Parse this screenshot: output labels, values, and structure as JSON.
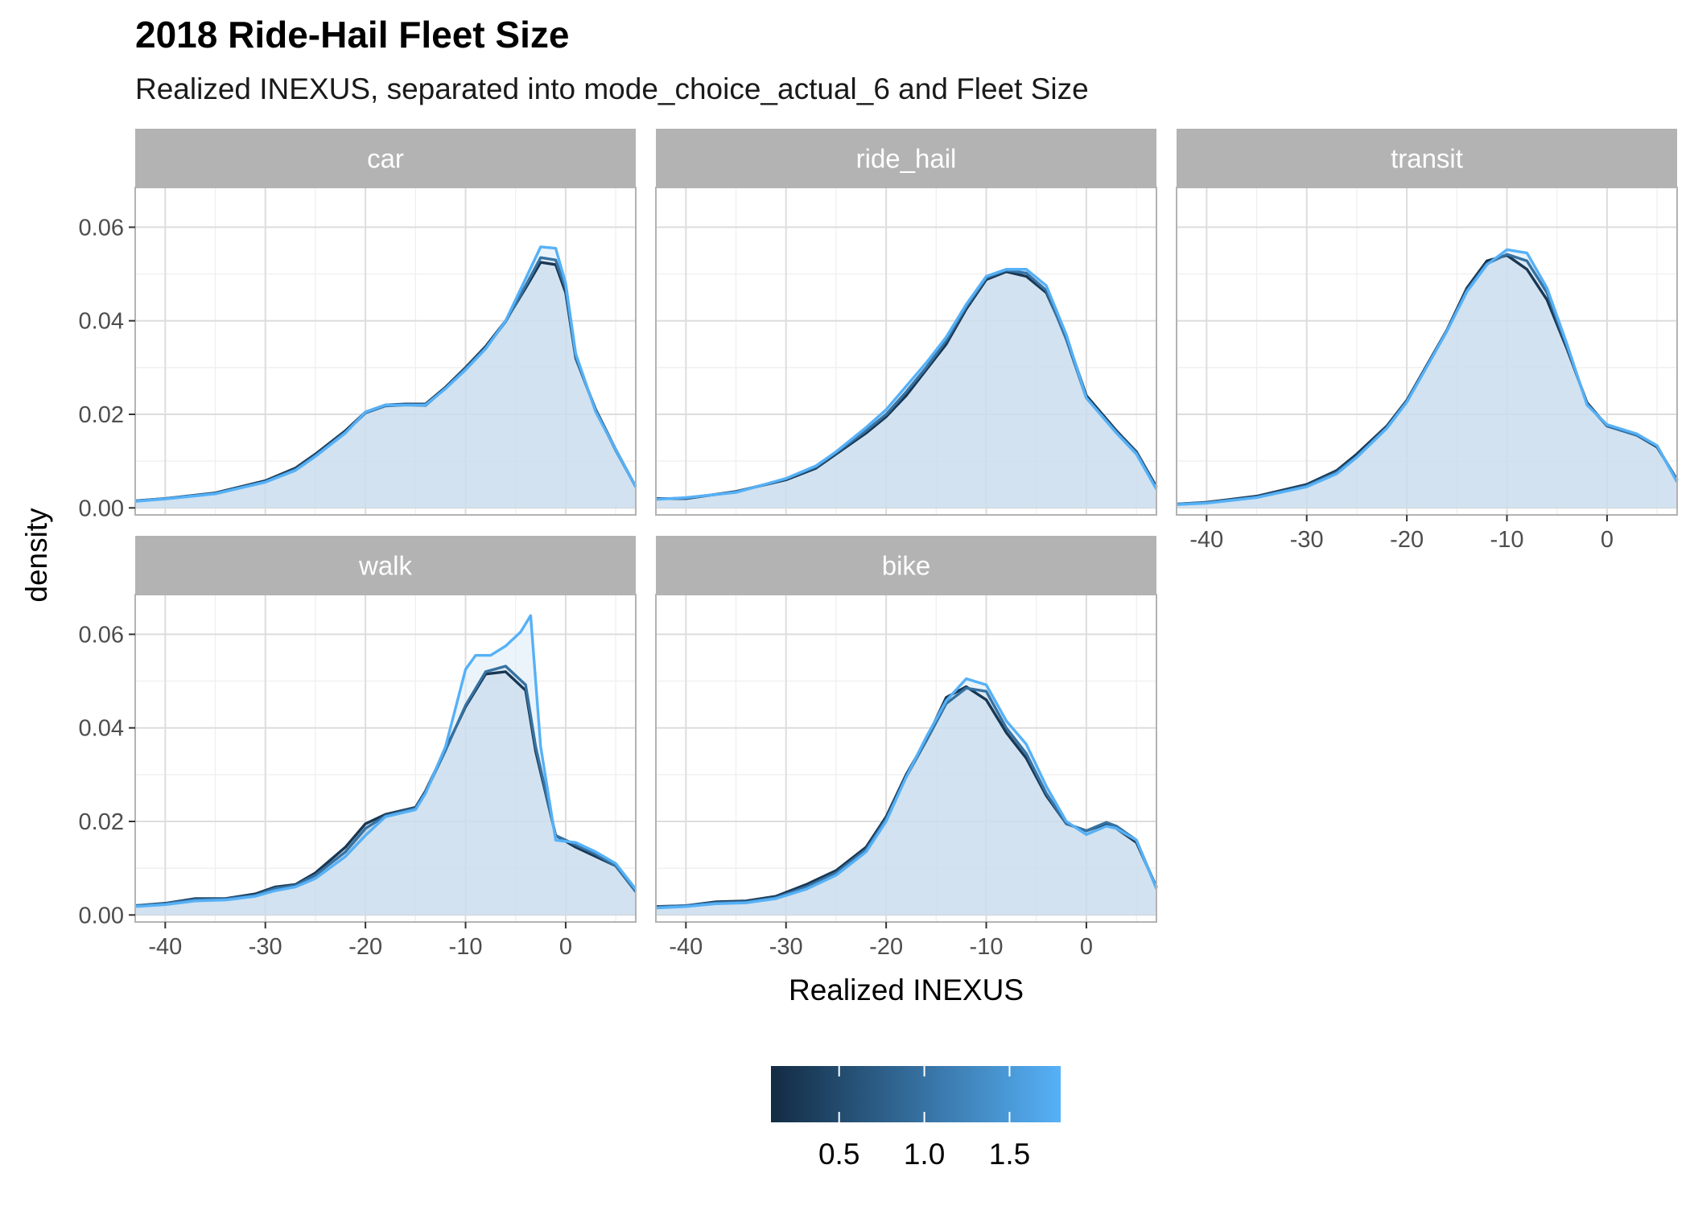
{
  "chart_data": {
    "type": "area",
    "title": "2018 Ride-Hail Fleet Size",
    "subtitle": "Realized INEXUS, separated into mode_choice_actual_6 and Fleet Size",
    "xlabel": "Realized INEXUS",
    "ylabel": "density",
    "xlim": [
      -43,
      7
    ],
    "ylim": [
      -0.0015,
      0.0685
    ],
    "x_ticks": [
      -40,
      -30,
      -20,
      -10,
      0
    ],
    "x_tick_labels": [
      "-40",
      "-30",
      "-20",
      "-10",
      "0"
    ],
    "y_ticks": [
      0,
      0.02,
      0.04,
      0.06
    ],
    "y_tick_labels": [
      "0.00",
      "0.02",
      "0.04",
      "0.06"
    ],
    "grid": true,
    "legend": {
      "type": "colorbar",
      "position": "bottom",
      "range": [
        0.1,
        1.8
      ],
      "ticks": [
        0.5,
        1.0,
        1.5
      ],
      "tick_labels": [
        "0.5",
        "1.0",
        "1.5"
      ],
      "color_low": "#132B43",
      "color_high": "#56B1F7"
    },
    "colors": {
      "dark": "#132B43",
      "mid": "#336A98",
      "light": "#56B1F7",
      "fill": "#A9C4D8",
      "strip": "#B3B3B3",
      "grid": "#DDDDDD"
    },
    "panels": [
      {
        "label": "car",
        "series": [
          {
            "fleet": 0.25,
            "x": [
              -43,
              -40,
              -35,
              -30,
              -27,
              -25,
              -22,
              -20,
              -18,
              -16,
              -14,
              -12,
              -10,
              -8,
              -6,
              -4,
              -2.5,
              -1,
              0,
              1,
              3,
              5,
              7
            ],
            "y": [
              0.0015,
              0.002,
              0.0032,
              0.0058,
              0.0085,
              0.0115,
              0.0165,
              0.0205,
              0.022,
              0.0222,
              0.0222,
              0.0258,
              0.03,
              0.0345,
              0.04,
              0.047,
              0.0525,
              0.052,
              0.046,
              0.032,
              0.021,
              0.0125,
              0.0045
            ]
          },
          {
            "fleet": 1.0,
            "x": [
              -43,
              -40,
              -35,
              -30,
              -27,
              -25,
              -22,
              -20,
              -18,
              -16,
              -14,
              -12,
              -10,
              -8,
              -6,
              -4,
              -2.5,
              -1,
              0,
              1,
              3,
              5,
              7
            ],
            "y": [
              0.0015,
              0.002,
              0.0031,
              0.0056,
              0.0082,
              0.0112,
              0.0162,
              0.0203,
              0.0218,
              0.022,
              0.0219,
              0.0256,
              0.0298,
              0.0342,
              0.0398,
              0.0475,
              0.0535,
              0.053,
              0.047,
              0.0322,
              0.0208,
              0.0123,
              0.0045
            ]
          },
          {
            "fleet": 1.8,
            "x": [
              -43,
              -40,
              -35,
              -30,
              -27,
              -25,
              -22,
              -20,
              -18,
              -16,
              -14,
              -12,
              -10,
              -8,
              -6,
              -4,
              -2.5,
              -1,
              0,
              1,
              3,
              5,
              7
            ],
            "y": [
              0.0014,
              0.0019,
              0.003,
              0.0055,
              0.008,
              0.011,
              0.016,
              0.0205,
              0.022,
              0.022,
              0.022,
              0.0255,
              0.0295,
              0.034,
              0.04,
              0.049,
              0.0558,
              0.0555,
              0.048,
              0.033,
              0.0205,
              0.0125,
              0.0045
            ]
          }
        ]
      },
      {
        "label": "ride_hail",
        "series": [
          {
            "fleet": 0.25,
            "x": [
              -43,
              -40,
              -35,
              -30,
              -27,
              -25,
              -22,
              -20,
              -18,
              -16,
              -14,
              -12,
              -10,
              -8,
              -6,
              -4,
              -2,
              0,
              3,
              5,
              7
            ],
            "y": [
              0.002,
              0.002,
              0.0035,
              0.006,
              0.0085,
              0.0115,
              0.016,
              0.0195,
              0.024,
              0.0295,
              0.035,
              0.0425,
              0.0488,
              0.0505,
              0.0495,
              0.046,
              0.0365,
              0.024,
              0.0165,
              0.012,
              0.0045
            ]
          },
          {
            "fleet": 1.0,
            "x": [
              -43,
              -40,
              -35,
              -30,
              -27,
              -25,
              -22,
              -20,
              -18,
              -16,
              -14,
              -12,
              -10,
              -8,
              -6,
              -4,
              -2,
              0,
              3,
              5,
              7
            ],
            "y": [
              0.0019,
              0.0021,
              0.0034,
              0.0062,
              0.0088,
              0.0118,
              0.0165,
              0.02,
              0.0248,
              0.03,
              0.0358,
              0.043,
              0.0492,
              0.0508,
              0.0502,
              0.0465,
              0.036,
              0.0235,
              0.0162,
              0.0118,
              0.0042
            ]
          },
          {
            "fleet": 1.8,
            "x": [
              -43,
              -40,
              -35,
              -30,
              -27,
              -25,
              -22,
              -20,
              -18,
              -16,
              -14,
              -12,
              -10,
              -8,
              -6,
              -4,
              -2,
              0,
              3,
              5,
              7
            ],
            "y": [
              0.0018,
              0.0022,
              0.0033,
              0.0063,
              0.009,
              0.012,
              0.0172,
              0.021,
              0.026,
              0.031,
              0.0365,
              0.0435,
              0.0495,
              0.051,
              0.051,
              0.0475,
              0.037,
              0.0235,
              0.016,
              0.0115,
              0.004
            ]
          }
        ]
      },
      {
        "label": "transit",
        "series": [
          {
            "fleet": 0.25,
            "x": [
              -43,
              -40,
              -35,
              -30,
              -27,
              -25,
              -22,
              -20,
              -18,
              -16,
              -14,
              -12,
              -10,
              -8,
              -6,
              -4,
              -2,
              0,
              3,
              5,
              7
            ],
            "y": [
              0.0008,
              0.0012,
              0.0025,
              0.005,
              0.008,
              0.0115,
              0.0175,
              0.023,
              0.0305,
              0.038,
              0.047,
              0.0528,
              0.054,
              0.051,
              0.0445,
              0.034,
              0.0225,
              0.0175,
              0.0155,
              0.013,
              0.006
            ]
          },
          {
            "fleet": 1.0,
            "x": [
              -43,
              -40,
              -35,
              -30,
              -27,
              -25,
              -22,
              -20,
              -18,
              -16,
              -14,
              -12,
              -10,
              -8,
              -6,
              -4,
              -2,
              0,
              3,
              5,
              7
            ],
            "y": [
              0.0008,
              0.0011,
              0.0023,
              0.0047,
              0.0076,
              0.011,
              0.0172,
              0.0228,
              0.0302,
              0.0378,
              0.0465,
              0.0522,
              0.0542,
              0.0528,
              0.046,
              0.0345,
              0.0222,
              0.0175,
              0.0155,
              0.0132,
              0.0058
            ]
          },
          {
            "fleet": 1.8,
            "x": [
              -43,
              -40,
              -35,
              -30,
              -27,
              -25,
              -22,
              -20,
              -18,
              -16,
              -14,
              -12,
              -10,
              -8,
              -6,
              -4,
              -2,
              0,
              3,
              5,
              7
            ],
            "y": [
              0.0007,
              0.001,
              0.0022,
              0.0045,
              0.0073,
              0.0108,
              0.017,
              0.0226,
              0.0302,
              0.0378,
              0.0462,
              0.052,
              0.0552,
              0.0545,
              0.047,
              0.035,
              0.022,
              0.0178,
              0.0158,
              0.0133,
              0.0055
            ]
          }
        ]
      },
      {
        "label": "walk",
        "series": [
          {
            "fleet": 0.25,
            "x": [
              -43,
              -40,
              -37,
              -34,
              -31,
              -29,
              -27,
              -25,
              -22,
              -20,
              -18,
              -15,
              -14,
              -12,
              -10,
              -8,
              -6,
              -4,
              -3,
              -1,
              1,
              3,
              5,
              7
            ],
            "y": [
              0.002,
              0.0025,
              0.0035,
              0.0035,
              0.0045,
              0.006,
              0.0065,
              0.009,
              0.0145,
              0.0195,
              0.0215,
              0.023,
              0.0265,
              0.0355,
              0.0445,
              0.0515,
              0.052,
              0.048,
              0.035,
              0.017,
              0.0145,
              0.0125,
              0.0105,
              0.005
            ]
          },
          {
            "fleet": 1.0,
            "x": [
              -43,
              -40,
              -37,
              -34,
              -31,
              -29,
              -27,
              -25,
              -22,
              -20,
              -18,
              -15,
              -14,
              -12,
              -10,
              -8,
              -6,
              -4,
              -3,
              -1,
              1,
              3,
              5,
              7
            ],
            "y": [
              0.002,
              0.0024,
              0.0033,
              0.0034,
              0.0042,
              0.0057,
              0.0063,
              0.0085,
              0.0135,
              0.0185,
              0.0212,
              0.0228,
              0.0262,
              0.0352,
              0.0448,
              0.052,
              0.0532,
              0.0492,
              0.036,
              0.017,
              0.015,
              0.013,
              0.0105,
              0.005
            ]
          },
          {
            "fleet": 1.8,
            "x": [
              -43,
              -40,
              -37,
              -34,
              -31,
              -29,
              -27,
              -25,
              -22,
              -20,
              -18,
              -15,
              -14,
              -12,
              -10,
              -9,
              -7.5,
              -6,
              -4.5,
              -3.5,
              -2.5,
              -1,
              1,
              3,
              5,
              7
            ],
            "y": [
              0.0018,
              0.0022,
              0.003,
              0.0032,
              0.004,
              0.0052,
              0.006,
              0.0078,
              0.0125,
              0.017,
              0.021,
              0.0225,
              0.026,
              0.036,
              0.0525,
              0.0555,
              0.0555,
              0.0575,
              0.0605,
              0.064,
              0.036,
              0.016,
              0.0155,
              0.0135,
              0.011,
              0.0055
            ]
          }
        ]
      },
      {
        "label": "bike",
        "series": [
          {
            "fleet": 0.25,
            "x": [
              -43,
              -40,
              -37,
              -34,
              -31,
              -28,
              -25,
              -22,
              -20,
              -18,
              -16,
              -14,
              -12,
              -10,
              -8,
              -6,
              -4,
              -2,
              0,
              2,
              3,
              5,
              7
            ],
            "y": [
              0.0018,
              0.002,
              0.0028,
              0.003,
              0.004,
              0.0065,
              0.0095,
              0.0145,
              0.021,
              0.03,
              0.0375,
              0.0465,
              0.0488,
              0.046,
              0.039,
              0.0335,
              0.0255,
              0.0195,
              0.018,
              0.0195,
              0.0185,
              0.0155,
              0.006
            ]
          },
          {
            "fleet": 1.0,
            "x": [
              -43,
              -40,
              -37,
              -34,
              -31,
              -28,
              -25,
              -22,
              -20,
              -18,
              -16,
              -14,
              -12,
              -10,
              -8,
              -6,
              -4,
              -2,
              0,
              2,
              3,
              5,
              7
            ],
            "y": [
              0.0017,
              0.002,
              0.0026,
              0.0028,
              0.0037,
              0.006,
              0.009,
              0.014,
              0.0205,
              0.0295,
              0.0372,
              0.0452,
              0.0485,
              0.0478,
              0.04,
              0.0345,
              0.026,
              0.0195,
              0.018,
              0.0198,
              0.019,
              0.016,
              0.0058
            ]
          },
          {
            "fleet": 1.8,
            "x": [
              -43,
              -40,
              -37,
              -34,
              -31,
              -28,
              -25,
              -22,
              -20,
              -18,
              -16,
              -14,
              -12,
              -10,
              -8,
              -6,
              -4,
              -2,
              0,
              2,
              3,
              5,
              7
            ],
            "y": [
              0.0015,
              0.0018,
              0.0024,
              0.0026,
              0.0035,
              0.0055,
              0.0085,
              0.0135,
              0.02,
              0.0295,
              0.038,
              0.0458,
              0.0505,
              0.0492,
              0.0415,
              0.0365,
              0.0275,
              0.02,
              0.0172,
              0.019,
              0.0185,
              0.016,
              0.0056
            ]
          }
        ]
      }
    ]
  }
}
